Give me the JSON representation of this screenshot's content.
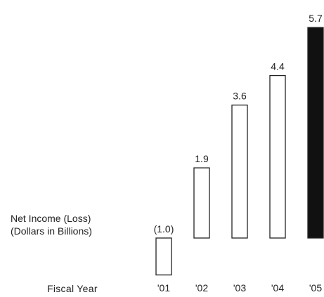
{
  "chart_data": {
    "type": "bar",
    "title": "",
    "ylabel_lines": [
      "Net Income (Loss)",
      "(Dollars in Billions)"
    ],
    "xlabel": "Fiscal Year",
    "categories": [
      "'01",
      "'02",
      "'03",
      "'04",
      "'05"
    ],
    "values": [
      -1.0,
      1.9,
      3.6,
      4.4,
      5.7
    ],
    "value_labels": [
      "(1.0)",
      "1.9",
      "3.6",
      "4.4",
      "5.7"
    ],
    "bar_fills": [
      "#ffffff",
      "#ffffff",
      "#ffffff",
      "#ffffff",
      "#111111"
    ],
    "bar_stroke": "#222222",
    "ylim": [
      -1.0,
      5.7
    ],
    "grid": false,
    "axes_visible": false
  }
}
